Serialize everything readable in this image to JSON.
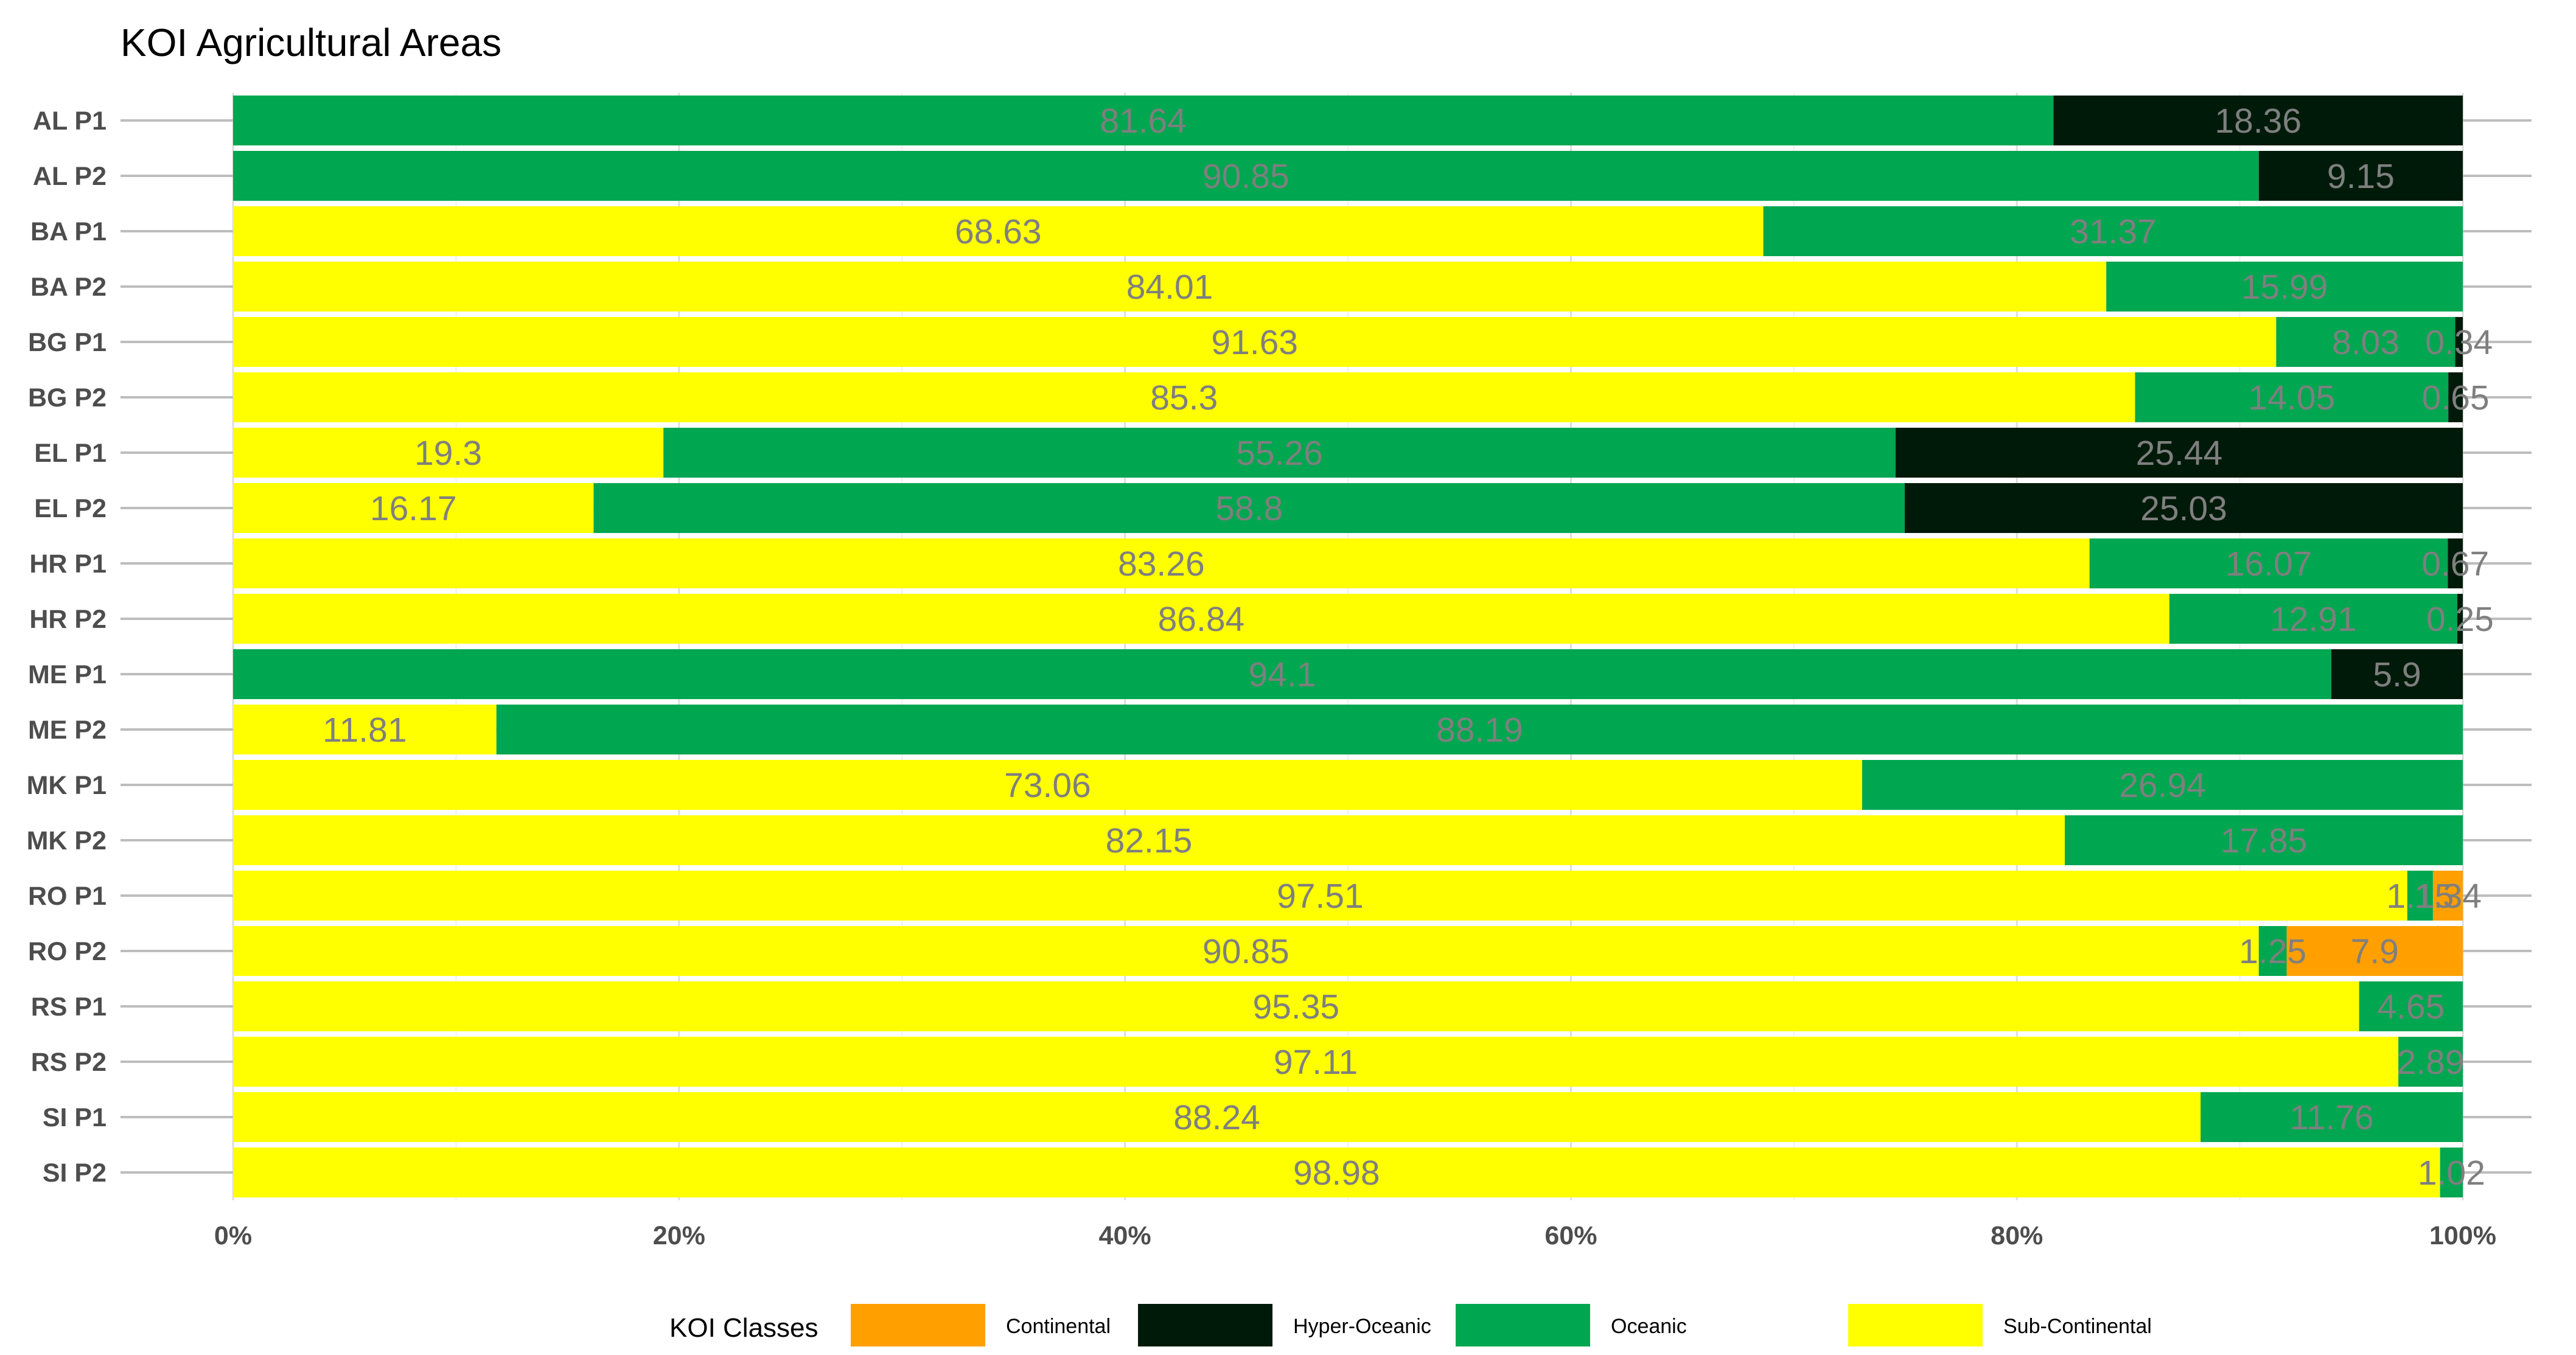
{
  "chart_data": {
    "type": "bar",
    "orientation": "horizontal",
    "stacked": true,
    "title": "KOI Agricultural Areas",
    "xlabel": "",
    "ylabel": "",
    "xlim": [
      0,
      100
    ],
    "x_ticks": [
      "0%",
      "20%",
      "40%",
      "60%",
      "80%",
      "100%"
    ],
    "grid": true,
    "legend": {
      "title": "KOI Classes",
      "position": "bottom",
      "entries": [
        {
          "name": "Continental",
          "color": "#FFA000"
        },
        {
          "name": "Hyper-Oceanic",
          "color": "#001A0A"
        },
        {
          "name": "Oceanic",
          "color": "#00A650"
        },
        {
          "name": "Sub-Continental",
          "color": "#FFFF00"
        }
      ]
    },
    "stack_order": [
      "Sub-Continental",
      "Oceanic",
      "Hyper-Oceanic",
      "Continental"
    ],
    "categories": [
      "AL P1",
      "AL P2",
      "BA P1",
      "BA P2",
      "BG P1",
      "BG P2",
      "EL P1",
      "EL P2",
      "HR P1",
      "HR P2",
      "ME P1",
      "ME P2",
      "MK P1",
      "MK P2",
      "RO P1",
      "RO P2",
      "RS P1",
      "RS P2",
      "SI P1",
      "SI P2"
    ],
    "series": [
      {
        "name": "Sub-Continental",
        "color": "#FFFF00",
        "values": [
          null,
          null,
          68.63,
          84.01,
          91.63,
          85.3,
          19.3,
          16.17,
          83.26,
          86.84,
          null,
          11.81,
          73.06,
          82.15,
          97.51,
          90.85,
          95.35,
          97.11,
          88.24,
          98.98
        ]
      },
      {
        "name": "Oceanic",
        "color": "#00A650",
        "values": [
          81.64,
          90.85,
          31.37,
          15.99,
          8.03,
          14.05,
          55.26,
          58.8,
          16.07,
          12.91,
          94.1,
          88.19,
          26.94,
          17.85,
          1.15,
          1.25,
          4.65,
          2.89,
          11.76,
          1.02
        ]
      },
      {
        "name": "Hyper-Oceanic",
        "color": "#001A0A",
        "values": [
          18.36,
          9.15,
          null,
          null,
          0.34,
          0.65,
          25.44,
          25.03,
          0.67,
          0.25,
          5.9,
          null,
          null,
          null,
          null,
          null,
          null,
          null,
          null,
          null
        ]
      },
      {
        "name": "Continental",
        "color": "#FFA000",
        "values": [
          null,
          null,
          null,
          null,
          null,
          null,
          null,
          null,
          null,
          null,
          null,
          null,
          null,
          null,
          1.34,
          7.9,
          null,
          null,
          null,
          null
        ]
      }
    ]
  }
}
